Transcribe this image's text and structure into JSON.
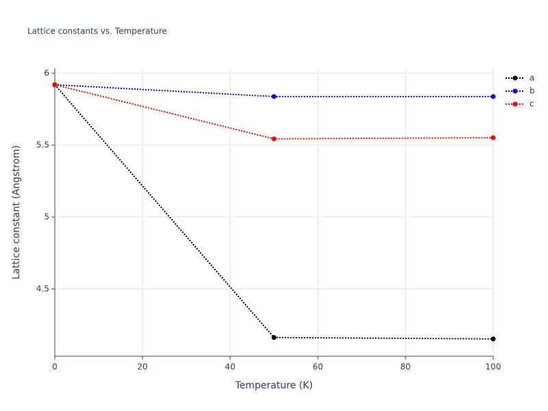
{
  "chart_data": {
    "type": "line",
    "title": "Lattice constants vs. Temperature",
    "x_label": "Temperature (K)",
    "y_label": "Lattice constant (Angstrom)",
    "x": [
      0,
      50,
      100
    ],
    "series": [
      {
        "name": "a",
        "color": "#000000",
        "values": [
          5.92,
          4.163,
          4.153
        ]
      },
      {
        "name": "b",
        "color": "#0000ff",
        "values": [
          5.92,
          5.838,
          5.838
        ]
      },
      {
        "name": "c",
        "color": "#ff0000",
        "values": [
          5.92,
          5.544,
          5.552
        ]
      }
    ],
    "xlim": [
      0,
      100
    ],
    "xticks": [
      0,
      20,
      40,
      60,
      80,
      100
    ],
    "ylim": [
      4.033,
      6.033
    ],
    "yticks": [
      4.5,
      5,
      5.5,
      6
    ],
    "grid": true,
    "legend": "top-right",
    "line_style": "dotted"
  }
}
